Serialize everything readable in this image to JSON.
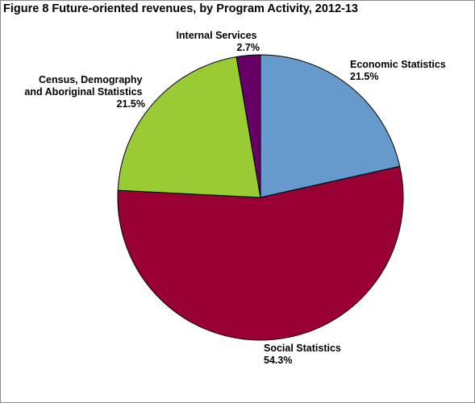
{
  "chart_data": {
    "type": "pie",
    "title": "Figure 8  Future-oriented revenues, by Program Activity, 2012-13",
    "slices": [
      {
        "name": "Economic Statistics",
        "value": 21.5,
        "label": "21.5%",
        "color": "#6699CC"
      },
      {
        "name": "Social Statistics",
        "value": 54.3,
        "label": "54.3%",
        "color": "#990033"
      },
      {
        "name": "Census, Demography and Aboriginal Statistics",
        "value": 21.5,
        "label": "21.5%",
        "color": "#99CC33"
      },
      {
        "name": "Internal Services",
        "value": 2.7,
        "label": "2.7%",
        "color": "#660066"
      }
    ],
    "label_lines": {
      "economic": [
        "Economic Statistics",
        "21.5%"
      ],
      "social": [
        "Social Statistics",
        "54.3%"
      ],
      "census": [
        "Census, Demography",
        "and Aboriginal Statistics",
        "21.5%"
      ],
      "internal": [
        "Internal Services",
        "2.7%"
      ]
    }
  }
}
